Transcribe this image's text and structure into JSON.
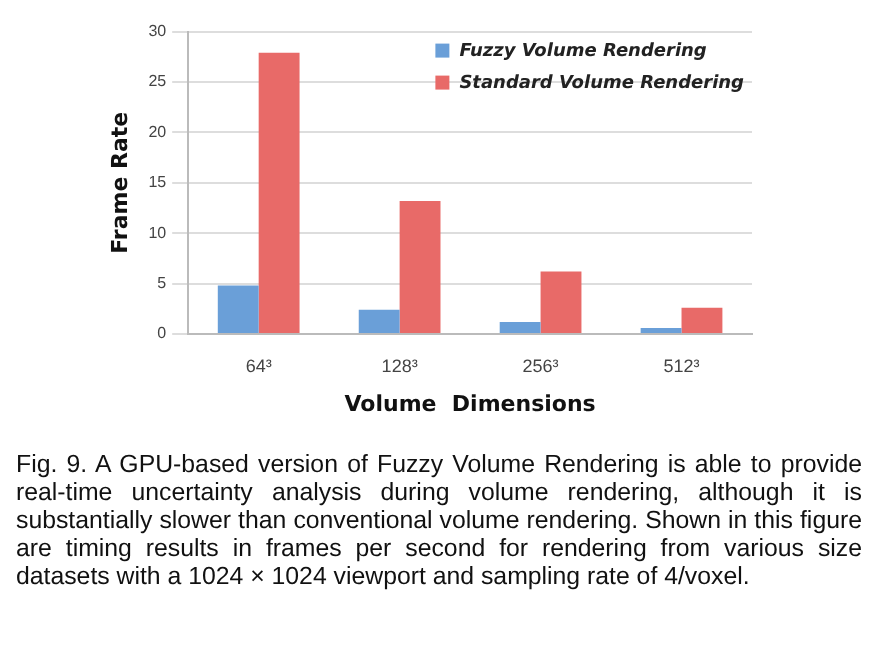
{
  "chart_data": {
    "type": "bar",
    "xlabel": "Volume  Dimensions",
    "ylabel": "Frame Rate",
    "categories": [
      "64³",
      "128³",
      "256³",
      "512³"
    ],
    "series": [
      {
        "name": "Fuzzy Volume Rendering",
        "color": "#6a9fd8",
        "values": [
          4.8,
          2.4,
          1.2,
          0.6
        ]
      },
      {
        "name": "Standard Volume Rendering",
        "color": "#e86a68",
        "values": [
          27.9,
          13.2,
          6.2,
          2.6
        ]
      }
    ],
    "ylim": [
      0,
      30
    ],
    "yticks": [
      0,
      5,
      10,
      15,
      20,
      25,
      30
    ],
    "grid": "y",
    "legend": "top right",
    "annotations": [
      "Fig. 9. A GPU-based version of Fuzzy Volume Rendering is able to provide real-time uncertainty analysis during volume rendering, although it is substantially slower than conventional volume rendering.  Shown in this figure are timing results in frames per second for rendering from various size datasets with a 1024 × 1024 viewport and sampling rate of 4/voxel."
    ]
  }
}
